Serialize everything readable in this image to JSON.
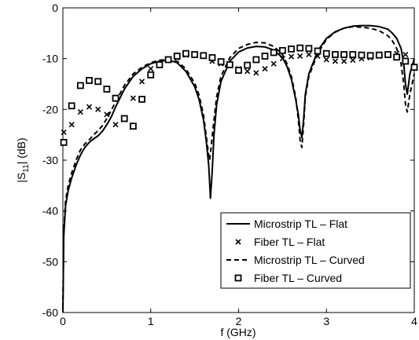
{
  "chart_data": {
    "type": "line",
    "xlabel": "f (GHz)",
    "ylabel_main": "|S",
    "ylabel_sub": "11",
    "ylabel_tail": "| (dB)",
    "xlim": [
      0,
      4
    ],
    "ylim": [
      -60,
      0
    ],
    "xticks": [
      0,
      1,
      2,
      3,
      4
    ],
    "yticks": [
      0,
      -10,
      -20,
      -30,
      -40,
      -50,
      -60
    ],
    "grid": false,
    "legend_position": "bottom-right",
    "series": [
      {
        "name": "Microstrip TL – Flat",
        "style": "solid",
        "points": [
          [
            0,
            -60
          ],
          [
            0.01,
            -45
          ],
          [
            0.03,
            -39
          ],
          [
            0.06,
            -36
          ],
          [
            0.1,
            -33.5
          ],
          [
            0.15,
            -31
          ],
          [
            0.2,
            -29
          ],
          [
            0.25,
            -27.5
          ],
          [
            0.3,
            -26.5
          ],
          [
            0.35,
            -25.8
          ],
          [
            0.4,
            -25.2
          ],
          [
            0.45,
            -24.3
          ],
          [
            0.5,
            -23
          ],
          [
            0.55,
            -21.5
          ],
          [
            0.6,
            -19.5
          ],
          [
            0.7,
            -16
          ],
          [
            0.8,
            -13.5
          ],
          [
            0.9,
            -12
          ],
          [
            1.0,
            -11
          ],
          [
            1.1,
            -10.5
          ],
          [
            1.2,
            -10.3
          ],
          [
            1.3,
            -10.8
          ],
          [
            1.4,
            -12.5
          ],
          [
            1.5,
            -15.5
          ],
          [
            1.55,
            -18
          ],
          [
            1.6,
            -22
          ],
          [
            1.63,
            -26
          ],
          [
            1.66,
            -31
          ],
          [
            1.68,
            -37.5
          ],
          [
            1.7,
            -32
          ],
          [
            1.72,
            -25
          ],
          [
            1.75,
            -19
          ],
          [
            1.8,
            -14.5
          ],
          [
            1.9,
            -10.5
          ],
          [
            2.0,
            -8.7
          ],
          [
            2.1,
            -7.9
          ],
          [
            2.2,
            -7.6
          ],
          [
            2.3,
            -7.7
          ],
          [
            2.4,
            -8.3
          ],
          [
            2.5,
            -9.8
          ],
          [
            2.55,
            -11.5
          ],
          [
            2.6,
            -14
          ],
          [
            2.65,
            -18
          ],
          [
            2.68,
            -21
          ],
          [
            2.7,
            -24
          ],
          [
            2.72,
            -25.5
          ],
          [
            2.74,
            -22
          ],
          [
            2.76,
            -17
          ],
          [
            2.8,
            -13
          ],
          [
            2.9,
            -8.5
          ],
          [
            3.0,
            -6
          ],
          [
            3.1,
            -4.7
          ],
          [
            3.2,
            -4
          ],
          [
            3.3,
            -3.6
          ],
          [
            3.4,
            -3.5
          ],
          [
            3.5,
            -3.5
          ],
          [
            3.6,
            -3.7
          ],
          [
            3.7,
            -4.2
          ],
          [
            3.75,
            -5
          ],
          [
            3.8,
            -6
          ],
          [
            3.85,
            -8
          ],
          [
            3.88,
            -11
          ],
          [
            3.9,
            -15
          ],
          [
            3.92,
            -17
          ],
          [
            3.95,
            -13
          ],
          [
            4.0,
            -10
          ]
        ]
      },
      {
        "name": "Fiber TL – Flat",
        "style": "x",
        "points": [
          [
            0.01,
            -24.5
          ],
          [
            0.1,
            -23
          ],
          [
            0.2,
            -20.5
          ],
          [
            0.3,
            -19.5
          ],
          [
            0.4,
            -20
          ],
          [
            0.5,
            -21
          ],
          [
            0.6,
            -23
          ],
          [
            0.7,
            -22
          ],
          [
            0.8,
            -17.8
          ],
          [
            0.9,
            -14.5
          ],
          [
            1.0,
            -12
          ],
          [
            1.1,
            -11
          ],
          [
            1.2,
            -10.2
          ],
          [
            1.3,
            -9.8
          ],
          [
            1.4,
            -9.3
          ],
          [
            1.5,
            -9.3
          ],
          [
            1.6,
            -9.5
          ],
          [
            1.7,
            -10.5
          ],
          [
            1.8,
            -11
          ],
          [
            1.9,
            -11.3
          ],
          [
            2.0,
            -12
          ],
          [
            2.1,
            -12.5
          ],
          [
            2.2,
            -12.8
          ],
          [
            2.3,
            -12
          ],
          [
            2.4,
            -11
          ],
          [
            2.5,
            -10
          ],
          [
            2.6,
            -9.6
          ],
          [
            2.7,
            -9.5
          ],
          [
            2.8,
            -9.2
          ],
          [
            2.9,
            -9.5
          ],
          [
            3.0,
            -10.2
          ],
          [
            3.1,
            -10.5
          ],
          [
            3.2,
            -10.5
          ],
          [
            3.3,
            -10.3
          ],
          [
            3.4,
            -10
          ],
          [
            3.5,
            -9.8
          ],
          [
            3.6,
            -9.5
          ],
          [
            3.7,
            -9.3
          ],
          [
            3.8,
            -9
          ],
          [
            3.9,
            -9.2
          ]
        ]
      },
      {
        "name": "Microstrip TL – Curved",
        "style": "dashed",
        "points": [
          [
            0,
            -59
          ],
          [
            0.01,
            -44
          ],
          [
            0.03,
            -38
          ],
          [
            0.06,
            -35
          ],
          [
            0.1,
            -32.5
          ],
          [
            0.15,
            -30
          ],
          [
            0.2,
            -28
          ],
          [
            0.25,
            -26.8
          ],
          [
            0.3,
            -26
          ],
          [
            0.35,
            -25
          ],
          [
            0.4,
            -24.2
          ],
          [
            0.45,
            -23.2
          ],
          [
            0.5,
            -21.8
          ],
          [
            0.55,
            -20.2
          ],
          [
            0.6,
            -18.5
          ],
          [
            0.7,
            -15.3
          ],
          [
            0.8,
            -13
          ],
          [
            0.9,
            -11.7
          ],
          [
            1.0,
            -10.8
          ],
          [
            1.1,
            -10.3
          ],
          [
            1.2,
            -10.2
          ],
          [
            1.3,
            -10.5
          ],
          [
            1.4,
            -12
          ],
          [
            1.5,
            -14.8
          ],
          [
            1.55,
            -17.2
          ],
          [
            1.6,
            -21
          ],
          [
            1.63,
            -25
          ],
          [
            1.66,
            -29
          ],
          [
            1.67,
            -30
          ],
          [
            1.69,
            -27
          ],
          [
            1.72,
            -22
          ],
          [
            1.75,
            -17.5
          ],
          [
            1.8,
            -13.5
          ],
          [
            1.9,
            -9.8
          ],
          [
            2.0,
            -8
          ],
          [
            2.1,
            -7.2
          ],
          [
            2.2,
            -6.8
          ],
          [
            2.3,
            -6.9
          ],
          [
            2.4,
            -7.6
          ],
          [
            2.5,
            -9.2
          ],
          [
            2.55,
            -11
          ],
          [
            2.6,
            -13.5
          ],
          [
            2.65,
            -17.5
          ],
          [
            2.68,
            -22
          ],
          [
            2.7,
            -26
          ],
          [
            2.72,
            -27.5
          ],
          [
            2.74,
            -23
          ],
          [
            2.76,
            -17.5
          ],
          [
            2.8,
            -13.5
          ],
          [
            2.9,
            -9
          ],
          [
            3.0,
            -6.2
          ],
          [
            3.1,
            -4.8
          ],
          [
            3.2,
            -4
          ],
          [
            3.3,
            -3.7
          ],
          [
            3.4,
            -3.8
          ],
          [
            3.5,
            -4
          ],
          [
            3.6,
            -4.5
          ],
          [
            3.7,
            -5.5
          ],
          [
            3.75,
            -6.5
          ],
          [
            3.8,
            -8
          ],
          [
            3.85,
            -11
          ],
          [
            3.88,
            -15
          ],
          [
            3.9,
            -19
          ],
          [
            3.92,
            -20.5
          ],
          [
            3.95,
            -17
          ],
          [
            4.0,
            -13
          ]
        ]
      },
      {
        "name": "Fiber TL – Curved",
        "style": "square",
        "points": [
          [
            0.01,
            -26.5
          ],
          [
            0.1,
            -19.3
          ],
          [
            0.2,
            -15.3
          ],
          [
            0.3,
            -14.3
          ],
          [
            0.4,
            -14.5
          ],
          [
            0.5,
            -16
          ],
          [
            0.6,
            -17.8
          ],
          [
            0.7,
            -21.8
          ],
          [
            0.8,
            -23.3
          ],
          [
            0.9,
            -18
          ],
          [
            1.0,
            -13.2
          ],
          [
            1.1,
            -11.2
          ],
          [
            1.2,
            -10.2
          ],
          [
            1.3,
            -9.5
          ],
          [
            1.4,
            -9
          ],
          [
            1.5,
            -9.2
          ],
          [
            1.6,
            -9.4
          ],
          [
            1.7,
            -9.8
          ],
          [
            1.8,
            -10.6
          ],
          [
            1.9,
            -11.2
          ],
          [
            2.0,
            -12.3
          ],
          [
            2.1,
            -11.3
          ],
          [
            2.2,
            -10.2
          ],
          [
            2.3,
            -9.5
          ],
          [
            2.4,
            -8.8
          ],
          [
            2.5,
            -8.4
          ],
          [
            2.6,
            -8.1
          ],
          [
            2.7,
            -7.9
          ],
          [
            2.8,
            -8
          ],
          [
            2.9,
            -8.5
          ],
          [
            3.0,
            -9
          ],
          [
            3.1,
            -9.2
          ],
          [
            3.2,
            -9.2
          ],
          [
            3.3,
            -9.2
          ],
          [
            3.4,
            -9.3
          ],
          [
            3.5,
            -9.4
          ],
          [
            3.6,
            -9.3
          ],
          [
            3.7,
            -9.2
          ],
          [
            3.8,
            -9.7
          ],
          [
            3.9,
            -10.5
          ],
          [
            4.0,
            -11.7
          ]
        ]
      }
    ]
  }
}
